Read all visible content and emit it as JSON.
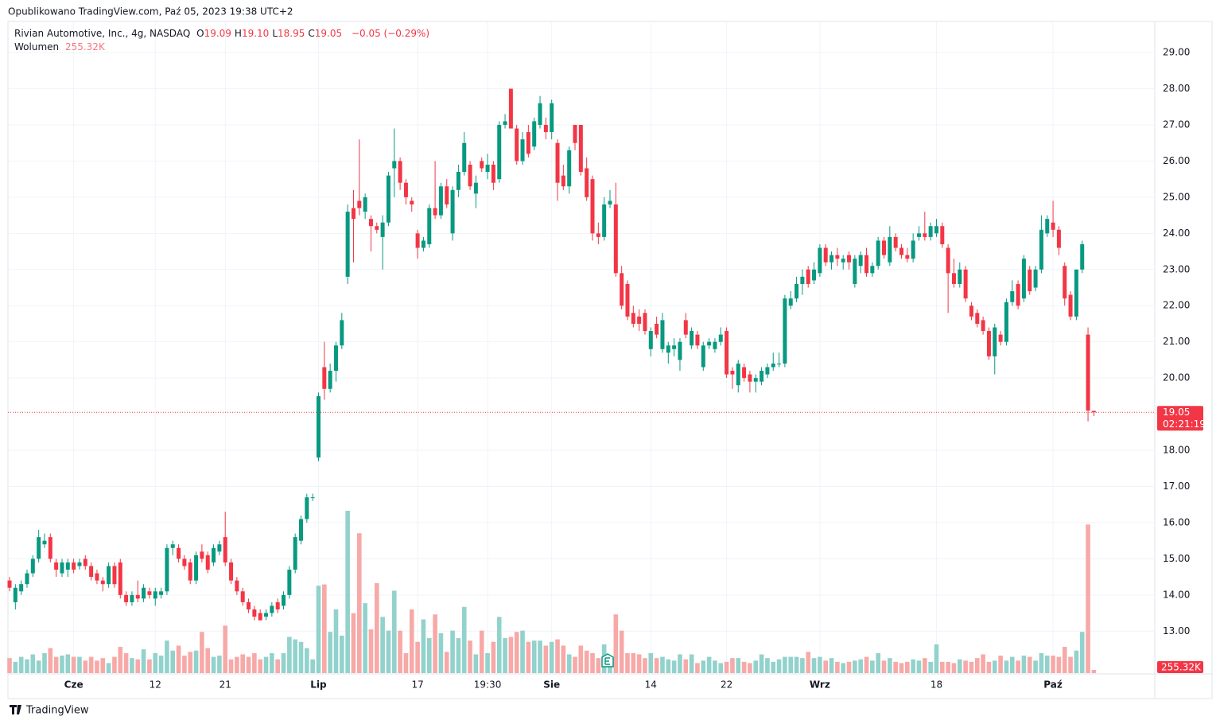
{
  "published": "Opublikowano TradingView.com, Paź 05, 2023 19:38 UTC+2",
  "footer": "TradingView",
  "chart_data": {
    "type": "candlestick",
    "title": "Rivian Automotive, Inc., 4g, NASDAQ",
    "legend": [
      {
        "key": "O",
        "value": "19.09"
      },
      {
        "key": "H",
        "value": "19.10"
      },
      {
        "key": "L",
        "value": "18.95"
      },
      {
        "key": "C",
        "value": "19.05"
      }
    ],
    "change": "−0.05 (−0.29%)",
    "volume_name": "Wolumen",
    "volume_value_label": "255.32K",
    "countdown": "02:21:19",
    "up_color": "#089981",
    "down_color": "#f23645",
    "volume_up_color": "#92d2cc",
    "volume_down_color": "#f7a9a7",
    "grid": true,
    "ylim": [
      11.84,
      29.86
    ],
    "yticks": [
      {
        "value": 13,
        "label": "13.00"
      },
      {
        "value": 14,
        "label": "14.00"
      },
      {
        "value": 15,
        "label": "15.00"
      },
      {
        "value": 16,
        "label": "16.00"
      },
      {
        "value": 17,
        "label": "17.00"
      },
      {
        "value": 18,
        "label": "18.00"
      },
      {
        "value": 20,
        "label": "20.00"
      },
      {
        "value": 21,
        "label": "21.00"
      },
      {
        "value": 22,
        "label": "22.00"
      },
      {
        "value": 23,
        "label": "23.00"
      },
      {
        "value": 24,
        "label": "24.00"
      },
      {
        "value": 25,
        "label": "25.00"
      },
      {
        "value": 26,
        "label": "26.00"
      },
      {
        "value": 27,
        "label": "27.00"
      },
      {
        "value": 28,
        "label": "28.00"
      },
      {
        "value": 29,
        "label": "29.00"
      }
    ],
    "xticks": [
      {
        "value": 11,
        "label": "Cze"
      },
      {
        "value": 25,
        "label": "12"
      },
      {
        "value": 37,
        "label": "21"
      },
      {
        "value": 53,
        "label": "Lip"
      },
      {
        "value": 70,
        "label": "17"
      },
      {
        "value": 82,
        "label": "19:30"
      },
      {
        "value": 93,
        "label": "Sie"
      },
      {
        "value": 110,
        "label": "14"
      },
      {
        "value": 123,
        "label": "22"
      },
      {
        "value": 139,
        "label": "Wrz"
      },
      {
        "value": 159,
        "label": "18"
      },
      {
        "value": 179,
        "label": "Paź"
      }
    ],
    "ohlc": [
      [
        14.4,
        14.5,
        14.1,
        14.2
      ],
      [
        13.8,
        14.3,
        13.6,
        14.2
      ],
      [
        14.1,
        14.4,
        14.0,
        14.3
      ],
      [
        14.3,
        14.7,
        14.2,
        14.6
      ],
      [
        14.6,
        15.1,
        14.5,
        15.0
      ],
      [
        15.0,
        15.8,
        14.9,
        15.6
      ],
      [
        15.4,
        15.7,
        15.3,
        15.5
      ],
      [
        15.6,
        15.7,
        14.9,
        15.0
      ],
      [
        14.9,
        15.0,
        14.5,
        14.7
      ],
      [
        14.6,
        15.0,
        14.5,
        14.9
      ],
      [
        14.7,
        15.0,
        14.5,
        14.9
      ],
      [
        14.9,
        15.0,
        14.6,
        14.7
      ],
      [
        14.8,
        15.0,
        14.7,
        14.9
      ],
      [
        15.0,
        15.1,
        14.7,
        14.8
      ],
      [
        14.8,
        14.9,
        14.4,
        14.5
      ],
      [
        14.6,
        14.7,
        14.3,
        14.4
      ],
      [
        14.4,
        14.5,
        14.1,
        14.3
      ],
      [
        14.3,
        14.9,
        14.2,
        14.8
      ],
      [
        14.8,
        14.9,
        14.2,
        14.3
      ],
      [
        14.9,
        15.0,
        13.9,
        14.0
      ],
      [
        14.0,
        14.1,
        13.7,
        13.8
      ],
      [
        13.8,
        14.1,
        13.7,
        14.0
      ],
      [
        14.0,
        14.4,
        13.8,
        13.9
      ],
      [
        13.9,
        14.3,
        13.8,
        14.2
      ],
      [
        14.1,
        14.2,
        13.9,
        14.0
      ],
      [
        13.9,
        14.2,
        13.7,
        14.1
      ],
      [
        14.0,
        14.2,
        13.9,
        14.1
      ],
      [
        14.1,
        15.4,
        14.0,
        15.3
      ],
      [
        15.3,
        15.5,
        15.1,
        15.4
      ],
      [
        15.3,
        15.4,
        14.9,
        15.0
      ],
      [
        15.0,
        15.1,
        14.7,
        14.8
      ],
      [
        14.9,
        15.0,
        14.3,
        14.4
      ],
      [
        14.4,
        15.2,
        14.3,
        15.1
      ],
      [
        15.2,
        15.4,
        14.9,
        15.0
      ],
      [
        15.1,
        15.2,
        14.6,
        14.7
      ],
      [
        14.9,
        15.4,
        14.8,
        15.3
      ],
      [
        15.2,
        15.5,
        15.1,
        15.4
      ],
      [
        15.6,
        16.3,
        14.8,
        14.9
      ],
      [
        14.9,
        15.0,
        14.3,
        14.4
      ],
      [
        14.4,
        14.5,
        14.0,
        14.1
      ],
      [
        14.1,
        14.2,
        13.7,
        13.8
      ],
      [
        13.8,
        13.9,
        13.5,
        13.6
      ],
      [
        13.6,
        13.7,
        13.3,
        13.4
      ],
      [
        13.5,
        13.6,
        13.3,
        13.3
      ],
      [
        13.4,
        13.6,
        13.3,
        13.5
      ],
      [
        13.5,
        13.8,
        13.4,
        13.7
      ],
      [
        13.8,
        13.9,
        13.5,
        13.6
      ],
      [
        13.7,
        14.1,
        13.6,
        14.0
      ],
      [
        14.0,
        14.8,
        13.9,
        14.7
      ],
      [
        14.7,
        15.7,
        14.6,
        15.6
      ],
      [
        15.5,
        16.2,
        15.4,
        16.1
      ],
      [
        16.1,
        16.8,
        16.0,
        16.7
      ],
      [
        16.7,
        16.8,
        16.6,
        16.7
      ],
      [
        17.8,
        19.6,
        17.7,
        19.5
      ],
      [
        20.3,
        21.0,
        19.4,
        19.7
      ],
      [
        19.7,
        20.4,
        19.6,
        20.2
      ],
      [
        20.2,
        21.0,
        19.9,
        20.9
      ],
      [
        20.9,
        21.8,
        20.8,
        21.6
      ],
      [
        22.8,
        24.8,
        22.6,
        24.6
      ],
      [
        24.7,
        25.2,
        23.2,
        24.4
      ],
      [
        24.9,
        26.6,
        24.5,
        24.7
      ],
      [
        24.6,
        25.1,
        24.4,
        25.0
      ],
      [
        24.4,
        24.5,
        23.5,
        24.2
      ],
      [
        24.2,
        24.3,
        24.0,
        24.1
      ],
      [
        23.9,
        24.5,
        23.0,
        24.3
      ],
      [
        24.3,
        25.7,
        24.2,
        25.6
      ],
      [
        25.8,
        26.9,
        25.0,
        26.0
      ],
      [
        26.0,
        26.1,
        25.2,
        25.4
      ],
      [
        25.4,
        25.5,
        24.8,
        25.0
      ],
      [
        24.9,
        25.0,
        24.6,
        24.8
      ],
      [
        24.0,
        24.1,
        23.3,
        23.6
      ],
      [
        23.6,
        23.9,
        23.5,
        23.8
      ],
      [
        23.7,
        24.8,
        23.6,
        24.7
      ],
      [
        24.7,
        26.0,
        24.4,
        24.5
      ],
      [
        24.5,
        25.4,
        24.4,
        25.3
      ],
      [
        25.3,
        25.5,
        24.7,
        24.8
      ],
      [
        24.0,
        25.3,
        23.8,
        25.2
      ],
      [
        25.2,
        25.9,
        25.0,
        25.7
      ],
      [
        25.7,
        26.8,
        25.6,
        26.5
      ],
      [
        25.9,
        26.0,
        25.2,
        25.3
      ],
      [
        25.1,
        25.6,
        24.7,
        25.4
      ],
      [
        26.0,
        26.1,
        25.7,
        25.8
      ],
      [
        25.7,
        26.2,
        25.5,
        25.9
      ],
      [
        25.9,
        26.0,
        25.2,
        25.4
      ],
      [
        25.5,
        27.1,
        25.4,
        27.0
      ],
      [
        27.0,
        27.3,
        26.9,
        27.1
      ],
      [
        28.0,
        28.0,
        26.9,
        26.9
      ],
      [
        26.9,
        27.0,
        25.9,
        26.0
      ],
      [
        26.0,
        26.8,
        25.9,
        26.6
      ],
      [
        26.8,
        27.0,
        26.1,
        26.2
      ],
      [
        26.4,
        27.2,
        26.3,
        27.1
      ],
      [
        27.0,
        27.8,
        26.9,
        27.6
      ],
      [
        27.0,
        27.2,
        26.6,
        26.8
      ],
      [
        26.8,
        27.7,
        26.6,
        27.6
      ],
      [
        26.5,
        26.6,
        24.9,
        25.4
      ],
      [
        25.6,
        25.9,
        25.2,
        25.3
      ],
      [
        25.3,
        26.4,
        25.1,
        26.3
      ],
      [
        27.0,
        27.0,
        26.3,
        26.5
      ],
      [
        27.0,
        27.0,
        25.6,
        25.7
      ],
      [
        25.8,
        26.1,
        24.9,
        25.0
      ],
      [
        25.5,
        25.6,
        23.8,
        24.0
      ],
      [
        24.0,
        24.3,
        23.7,
        23.9
      ],
      [
        23.9,
        25.0,
        23.8,
        24.8
      ],
      [
        24.8,
        25.2,
        24.7,
        24.9
      ],
      [
        24.8,
        25.4,
        22.8,
        22.9
      ],
      [
        22.9,
        23.1,
        21.9,
        22.0
      ],
      [
        22.6,
        22.7,
        21.6,
        21.7
      ],
      [
        21.8,
        22.0,
        21.4,
        21.5
      ],
      [
        21.7,
        21.9,
        21.3,
        21.5
      ],
      [
        21.8,
        21.9,
        21.2,
        21.3
      ],
      [
        20.8,
        21.4,
        20.6,
        21.3
      ],
      [
        21.5,
        21.7,
        21.1,
        21.2
      ],
      [
        20.8,
        21.8,
        20.7,
        21.6
      ],
      [
        20.7,
        21.0,
        20.4,
        20.9
      ],
      [
        20.8,
        21.1,
        20.6,
        20.9
      ],
      [
        20.5,
        21.1,
        20.2,
        21.0
      ],
      [
        21.6,
        21.8,
        21.1,
        21.2
      ],
      [
        20.9,
        21.4,
        20.8,
        21.3
      ],
      [
        21.2,
        21.3,
        20.8,
        20.9
      ],
      [
        20.3,
        21.0,
        20.2,
        20.9
      ],
      [
        20.9,
        21.1,
        20.8,
        21.0
      ],
      [
        20.8,
        21.1,
        20.7,
        21.0
      ],
      [
        21.0,
        21.4,
        20.9,
        21.2
      ],
      [
        21.3,
        21.4,
        20.0,
        20.1
      ],
      [
        20.2,
        20.3,
        19.7,
        20.1
      ],
      [
        19.8,
        20.5,
        19.6,
        20.4
      ],
      [
        20.3,
        20.4,
        19.9,
        20.0
      ],
      [
        20.1,
        20.2,
        19.6,
        19.9
      ],
      [
        19.9,
        20.1,
        19.6,
        20.0
      ],
      [
        19.9,
        20.3,
        19.8,
        20.2
      ],
      [
        20.1,
        20.4,
        20.0,
        20.3
      ],
      [
        20.3,
        20.7,
        20.2,
        20.4
      ],
      [
        20.4,
        20.7,
        20.3,
        20.4
      ],
      [
        20.4,
        22.3,
        20.3,
        22.2
      ],
      [
        22.0,
        22.4,
        21.9,
        22.2
      ],
      [
        22.2,
        22.8,
        22.1,
        22.6
      ],
      [
        22.6,
        23.0,
        22.3,
        22.8
      ],
      [
        23.0,
        23.1,
        22.5,
        22.6
      ],
      [
        22.7,
        23.2,
        22.6,
        23.0
      ],
      [
        22.9,
        23.7,
        22.8,
        23.6
      ],
      [
        23.6,
        23.7,
        23.1,
        23.2
      ],
      [
        23.2,
        23.5,
        23.0,
        23.4
      ],
      [
        23.4,
        23.6,
        23.1,
        23.3
      ],
      [
        23.2,
        23.4,
        23.0,
        23.3
      ],
      [
        23.4,
        23.5,
        23.0,
        23.2
      ],
      [
        22.6,
        23.4,
        22.5,
        23.3
      ],
      [
        23.1,
        23.5,
        22.9,
        23.4
      ],
      [
        23.4,
        23.6,
        22.8,
        22.9
      ],
      [
        22.9,
        23.2,
        22.8,
        23.1
      ],
      [
        23.1,
        23.9,
        23.0,
        23.8
      ],
      [
        23.8,
        23.9,
        23.3,
        23.4
      ],
      [
        23.2,
        24.2,
        23.1,
        23.9
      ],
      [
        23.9,
        24.0,
        23.5,
        23.6
      ],
      [
        23.6,
        23.7,
        23.3,
        23.4
      ],
      [
        23.4,
        23.6,
        23.2,
        23.3
      ],
      [
        23.3,
        24.0,
        23.2,
        23.8
      ],
      [
        23.9,
        24.2,
        23.8,
        24.0
      ],
      [
        24.0,
        24.6,
        23.8,
        23.9
      ],
      [
        23.9,
        24.3,
        23.8,
        24.2
      ],
      [
        24.0,
        24.4,
        23.9,
        24.2
      ],
      [
        24.2,
        24.3,
        23.6,
        23.7
      ],
      [
        23.6,
        23.7,
        21.8,
        22.9
      ],
      [
        22.9,
        23.3,
        22.5,
        22.6
      ],
      [
        22.6,
        23.2,
        22.5,
        23.0
      ],
      [
        23.0,
        23.1,
        22.1,
        22.2
      ],
      [
        22.0,
        22.1,
        21.6,
        21.7
      ],
      [
        21.8,
        21.9,
        21.4,
        21.5
      ],
      [
        21.6,
        21.7,
        21.2,
        21.3
      ],
      [
        21.3,
        21.4,
        20.5,
        20.6
      ],
      [
        20.6,
        21.5,
        20.1,
        21.4
      ],
      [
        21.2,
        21.3,
        20.9,
        21.0
      ],
      [
        21.0,
        22.2,
        20.9,
        22.1
      ],
      [
        22.1,
        22.7,
        22.0,
        22.4
      ],
      [
        22.6,
        22.7,
        21.9,
        22.0
      ],
      [
        22.2,
        23.4,
        22.1,
        23.3
      ],
      [
        23.0,
        23.1,
        22.3,
        22.4
      ],
      [
        22.5,
        23.1,
        22.4,
        23.0
      ],
      [
        23.0,
        24.5,
        22.9,
        24.1
      ],
      [
        24.0,
        24.5,
        23.9,
        24.4
      ],
      [
        24.3,
        24.9,
        23.9,
        24.1
      ],
      [
        24.1,
        24.2,
        23.4,
        23.6
      ],
      [
        23.1,
        23.2,
        22.0,
        22.2
      ],
      [
        22.3,
        22.4,
        21.6,
        21.7
      ],
      [
        21.7,
        23.0,
        21.6,
        23.0
      ],
      [
        23.0,
        23.8,
        22.9,
        23.7
      ],
      [
        21.2,
        21.4,
        18.8,
        19.1
      ],
      [
        19.09,
        19.1,
        18.95,
        19.05
      ]
    ],
    "volume": [
      1200,
      900,
      1300,
      1100,
      1500,
      1000,
      1600,
      2000,
      1300,
      1400,
      1500,
      1300,
      1300,
      1000,
      1300,
      1000,
      1200,
      800,
      1300,
      2100,
      1600,
      1200,
      1100,
      1900,
      1100,
      1600,
      1400,
      2600,
      1800,
      2200,
      1400,
      1700,
      1800,
      3300,
      2000,
      1300,
      1400,
      3800,
      1100,
      1300,
      1500,
      1300,
      1600,
      1100,
      1300,
      1600,
      1100,
      1600,
      2900,
      2700,
      2500,
      2000,
      1100,
      7000,
      7100,
      3300,
      5100,
      3000,
      13000,
      4800,
      11200,
      5600,
      3500,
      7200,
      4500,
      3400,
      6600,
      3400,
      1600,
      5100,
      2500,
      4300,
      2800,
      4700,
      3200,
      1700,
      3400,
      2800,
      5300,
      2600,
      1500,
      3400,
      1600,
      2500,
      4500,
      2800,
      2900,
      3300,
      3400,
      2500,
      2600,
      2600,
      2200,
      2500,
      2700,
      2200,
      1500,
      1300,
      2200,
      1800,
      1600,
      1200,
      2300,
      1300,
      4700,
      3400,
      1600,
      1600,
      1500,
      1200,
      1600,
      1200,
      1300,
      1100,
      1000,
      1500,
      1100,
      1500,
      800,
      1000,
      1300,
      1000,
      800,
      900,
      1200,
      1200,
      900,
      800,
      1000,
      1500,
      1200,
      900,
      1100,
      1300,
      1300,
      1300,
      1200,
      1700,
      1200,
      1300,
      1000,
      1200,
      900,
      800,
      900,
      1000,
      1100,
      1300,
      1000,
      1600,
      1000,
      1200,
      900,
      800,
      900,
      1100,
      1000,
      1200,
      900,
      2300,
      900,
      900,
      800,
      1100,
      1000,
      900,
      1200,
      1500,
      900,
      1000,
      1400,
      1000,
      1300,
      1000,
      1400,
      1300,
      1000,
      1600,
      1400,
      1400,
      1300,
      2100,
      1300,
      1800,
      3300,
      11900,
      255.32
    ]
  }
}
